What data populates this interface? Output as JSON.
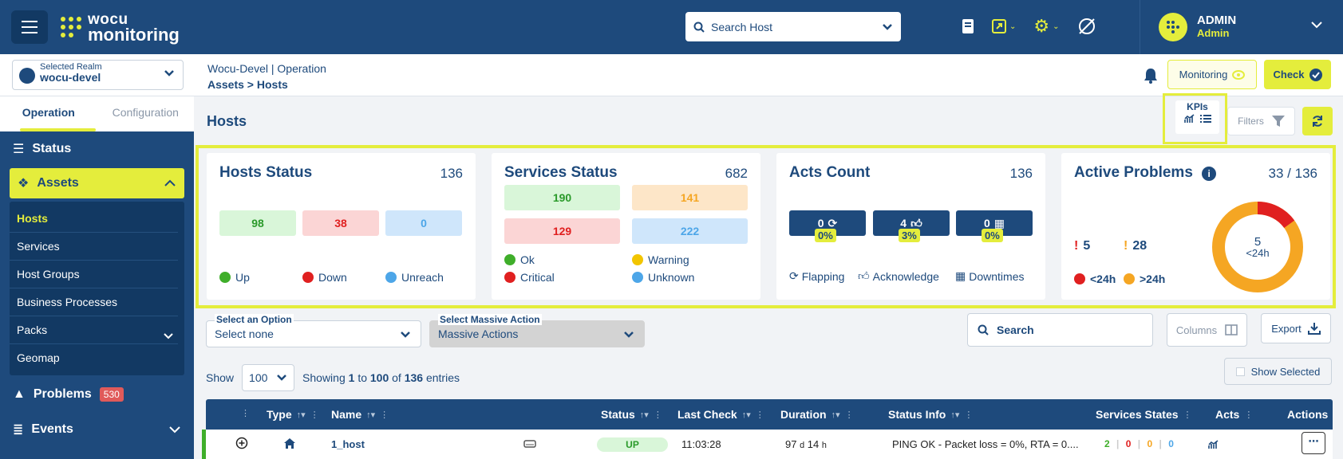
{
  "topbar": {
    "logo_line1": "wocu",
    "logo_line2": "monitoring",
    "search_placeholder": "Search Host",
    "user_name": "ADMIN",
    "user_role": "Admin"
  },
  "subbar": {
    "realm_label": "Selected Realm",
    "realm_value": "wocu-devel",
    "breadcrumb_top": "Wocu-Devel | Operation",
    "breadcrumb_path": "Assets > Hosts",
    "monitoring_label": "Monitoring",
    "check_label": "Check"
  },
  "sidebar": {
    "tabs": [
      "Operation",
      "Configuration"
    ],
    "status_label": "Status",
    "assets_label": "Assets",
    "asset_items": [
      "Hosts",
      "Services",
      "Host Groups",
      "Business Processes",
      "Packs",
      "Geomap"
    ],
    "problems_label": "Problems",
    "problems_count": "530",
    "events_label": "Events"
  },
  "main": {
    "title": "Hosts",
    "kpis_label": "KPIs",
    "filters_label": "Filters"
  },
  "cards": {
    "hosts": {
      "title": "Hosts Status",
      "total": "136",
      "up": "98",
      "down": "38",
      "unreach": "0",
      "leg_up": "Up",
      "leg_down": "Down",
      "leg_unreach": "Unreach"
    },
    "services": {
      "title": "Services Status",
      "total": "682",
      "ok": "190",
      "warning": "141",
      "critical": "129",
      "unknown": "222",
      "leg_ok": "Ok",
      "leg_warning": "Warning",
      "leg_critical": "Critical",
      "leg_unknown": "Unknown"
    },
    "acts": {
      "title": "Acts Count",
      "total": "136",
      "flapping": "0",
      "flapping_pct": "0%",
      "ack": "4",
      "ack_pct": "3%",
      "downtimes": "0",
      "downtimes_pct": "0%",
      "leg_flapping": "Flapping",
      "leg_ack": "Acknowledge",
      "leg_downtimes": "Downtimes"
    },
    "problems": {
      "title": "Active Problems",
      "total": "33 / 136",
      "recent": "5",
      "old": "28",
      "donut_value": "5",
      "donut_label": "<24h",
      "leg_recent": "<24h",
      "leg_old": ">24h",
      "recent_fraction": 0.15
    }
  },
  "controls": {
    "option_label": "Select an Option",
    "option_value": "Select none",
    "massive_label": "Select Massive Action",
    "massive_value": "Massive Actions",
    "search_label": "Search",
    "columns_label": "Columns",
    "export_label": "Export",
    "show_label": "Show",
    "show_value": "100",
    "entries_prefix": "Showing",
    "entries_from": "1",
    "entries_to_word": "to",
    "entries_to": "100",
    "entries_of_word": "of",
    "entries_total": "136",
    "entries_suffix": "entries",
    "show_selected_label": "Show Selected"
  },
  "table": {
    "headers": [
      "Type",
      "Name",
      "Status",
      "Last Check",
      "Duration",
      "Status Info",
      "Services States",
      "Acts",
      "Actions"
    ],
    "row": {
      "name": "1_host",
      "status": "UP",
      "last_check": "11:03:28",
      "duration_days": "97",
      "duration_d": "d",
      "duration_hours": "14",
      "duration_h": "h",
      "status_info": "PING OK - Packet loss = 0%, RTA = 0....",
      "svc_ok": "2",
      "svc_crit": "0",
      "svc_warn": "0",
      "svc_unknown": "0"
    }
  },
  "colors": {
    "primary": "#1e4a7c",
    "accent": "#e4ed3c",
    "ok": "#3fae2a",
    "down": "#e02020",
    "warning": "#f5a623",
    "unknown": "#4da6e8"
  }
}
